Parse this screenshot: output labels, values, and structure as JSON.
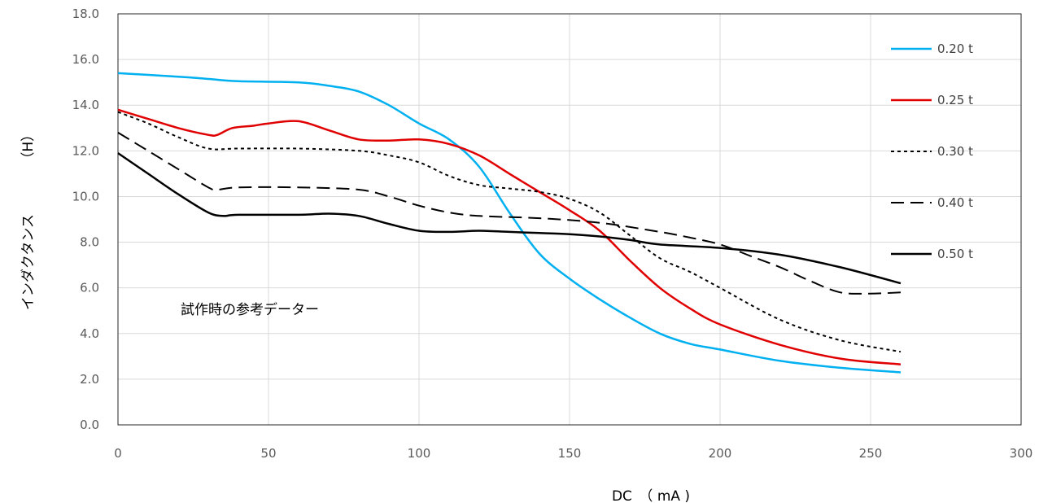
{
  "chart_data": {
    "type": "line",
    "title": "",
    "xlabel": "DC　（ mA )",
    "ylabel": "インダクタンス　　　　（H）",
    "xlim": [
      0,
      300
    ],
    "ylim": [
      0,
      18
    ],
    "xticks": [
      "0",
      "50",
      "100",
      "150",
      "200",
      "250",
      "300"
    ],
    "yticks": [
      "0.0",
      "2.0",
      "4.0",
      "6.0",
      "8.0",
      "10.0",
      "12.0",
      "14.0",
      "16.0",
      "18.0"
    ],
    "grid": true,
    "legend_position": "right",
    "annotation": "試作時の参考データー",
    "series": [
      {
        "name": "0.20 t",
        "color": "#00B0F0",
        "dash": "solid",
        "points": [
          [
            0,
            15.4
          ],
          [
            20,
            15.25
          ],
          [
            30,
            15.15
          ],
          [
            40,
            15.05
          ],
          [
            60,
            15.0
          ],
          [
            70,
            14.85
          ],
          [
            80,
            14.6
          ],
          [
            90,
            14.0
          ],
          [
            100,
            13.2
          ],
          [
            110,
            12.5
          ],
          [
            120,
            11.3
          ],
          [
            130,
            9.3
          ],
          [
            140,
            7.5
          ],
          [
            150,
            6.4
          ],
          [
            160,
            5.5
          ],
          [
            170,
            4.7
          ],
          [
            180,
            4.0
          ],
          [
            190,
            3.55
          ],
          [
            200,
            3.3
          ],
          [
            220,
            2.8
          ],
          [
            240,
            2.5
          ],
          [
            260,
            2.3
          ]
        ]
      },
      {
        "name": "0.25 t",
        "color": "#E00000",
        "dash": "solid",
        "points": [
          [
            0,
            13.8
          ],
          [
            10,
            13.4
          ],
          [
            20,
            13.0
          ],
          [
            30,
            12.7
          ],
          [
            33,
            12.7
          ],
          [
            38,
            13.0
          ],
          [
            45,
            13.1
          ],
          [
            50,
            13.2
          ],
          [
            60,
            13.3
          ],
          [
            70,
            12.9
          ],
          [
            80,
            12.5
          ],
          [
            90,
            12.45
          ],
          [
            100,
            12.5
          ],
          [
            110,
            12.3
          ],
          [
            120,
            11.8
          ],
          [
            130,
            11.0
          ],
          [
            140,
            10.2
          ],
          [
            150,
            9.4
          ],
          [
            160,
            8.5
          ],
          [
            170,
            7.2
          ],
          [
            180,
            6.0
          ],
          [
            190,
            5.1
          ],
          [
            200,
            4.4
          ],
          [
            220,
            3.5
          ],
          [
            240,
            2.9
          ],
          [
            260,
            2.65
          ]
        ]
      },
      {
        "name": "0.30 t",
        "color": "#000000",
        "dash": "short",
        "points": [
          [
            0,
            13.7
          ],
          [
            10,
            13.2
          ],
          [
            20,
            12.6
          ],
          [
            30,
            12.1
          ],
          [
            40,
            12.1
          ],
          [
            60,
            12.1
          ],
          [
            80,
            12.0
          ],
          [
            90,
            11.8
          ],
          [
            100,
            11.5
          ],
          [
            110,
            10.9
          ],
          [
            120,
            10.5
          ],
          [
            130,
            10.35
          ],
          [
            140,
            10.2
          ],
          [
            150,
            9.9
          ],
          [
            160,
            9.3
          ],
          [
            170,
            8.3
          ],
          [
            180,
            7.3
          ],
          [
            190,
            6.7
          ],
          [
            200,
            6.0
          ],
          [
            220,
            4.6
          ],
          [
            240,
            3.7
          ],
          [
            260,
            3.2
          ]
        ]
      },
      {
        "name": "0.40 t",
        "color": "#000000",
        "dash": "long",
        "points": [
          [
            0,
            12.8
          ],
          [
            10,
            12.0
          ],
          [
            20,
            11.2
          ],
          [
            30,
            10.4
          ],
          [
            33,
            10.3
          ],
          [
            40,
            10.4
          ],
          [
            60,
            10.4
          ],
          [
            80,
            10.3
          ],
          [
            90,
            10.0
          ],
          [
            100,
            9.6
          ],
          [
            110,
            9.3
          ],
          [
            120,
            9.15
          ],
          [
            140,
            9.05
          ],
          [
            160,
            8.85
          ],
          [
            180,
            8.45
          ],
          [
            190,
            8.2
          ],
          [
            200,
            7.9
          ],
          [
            210,
            7.4
          ],
          [
            220,
            6.9
          ],
          [
            230,
            6.3
          ],
          [
            240,
            5.8
          ],
          [
            250,
            5.75
          ],
          [
            260,
            5.8
          ]
        ]
      },
      {
        "name": "0.50 t",
        "color": "#000000",
        "dash": "solid",
        "points": [
          [
            0,
            11.9
          ],
          [
            10,
            11.0
          ],
          [
            20,
            10.1
          ],
          [
            30,
            9.3
          ],
          [
            35,
            9.15
          ],
          [
            40,
            9.2
          ],
          [
            60,
            9.2
          ],
          [
            70,
            9.25
          ],
          [
            80,
            9.15
          ],
          [
            90,
            8.8
          ],
          [
            100,
            8.5
          ],
          [
            110,
            8.45
          ],
          [
            120,
            8.5
          ],
          [
            130,
            8.45
          ],
          [
            140,
            8.4
          ],
          [
            150,
            8.35
          ],
          [
            160,
            8.25
          ],
          [
            170,
            8.1
          ],
          [
            180,
            7.9
          ],
          [
            200,
            7.75
          ],
          [
            220,
            7.45
          ],
          [
            240,
            6.9
          ],
          [
            260,
            6.2
          ]
        ]
      }
    ]
  }
}
